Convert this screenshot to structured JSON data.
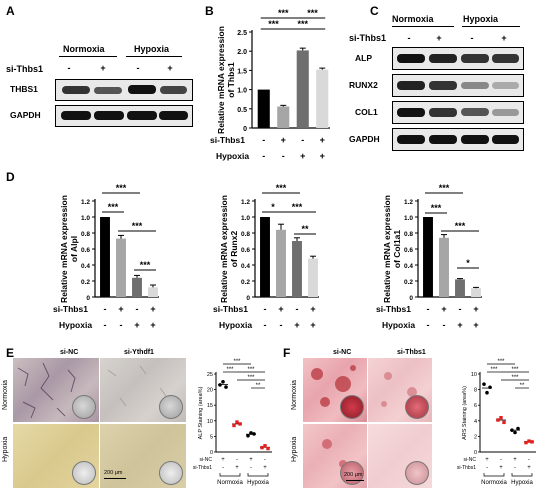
{
  "panels": [
    "A",
    "B",
    "C",
    "D",
    "E",
    "F"
  ],
  "panelA": {
    "headers": [
      "Normoxia",
      "Hypoxia"
    ],
    "row_label": "si-Thbs1",
    "signs": [
      "-",
      "+",
      "-",
      "+"
    ],
    "bands": [
      "THBS1",
      "GAPDH"
    ]
  },
  "panelB": {
    "chart_data": {
      "type": "bar",
      "ylabel": "Relative mRNA expression of Thbs1",
      "ylim": [
        0,
        2.5
      ],
      "yticks": [
        "0",
        "0.5",
        "1.0",
        "1.5",
        "2.0",
        "2.5"
      ],
      "values": [
        1.0,
        0.56,
        2.02,
        1.52
      ],
      "errors": [
        0.0,
        0.03,
        0.06,
        0.04
      ],
      "colors": [
        "#000000",
        "#a6a6a6",
        "#6f6f6f",
        "#d9d9d9"
      ],
      "sig": [
        "***",
        "***",
        "***",
        "***"
      ],
      "row1_label": "si-Thbs1",
      "row1": [
        "-",
        "+",
        "-",
        "+"
      ],
      "row2_label": "Hypoxia",
      "row2": [
        "-",
        "-",
        "+",
        "+"
      ]
    }
  },
  "panelC": {
    "headers": [
      "Normoxia",
      "Hypoxia"
    ],
    "row_label": "si-Thbs1",
    "signs": [
      "-",
      "+",
      "-",
      "+"
    ],
    "bands": [
      "ALP",
      "RUNX2",
      "COL1",
      "GAPDH"
    ]
  },
  "panelD": {
    "chart_data": [
      {
        "type": "bar",
        "ylabel": "Relative mRNA expression of Alpl",
        "ylim": [
          0,
          1.2
        ],
        "values": [
          1.0,
          0.73,
          0.24,
          0.12
        ],
        "errors": [
          0,
          0.04,
          0.03,
          0.03
        ],
        "sig": [
          "***",
          "***",
          "***",
          "***"
        ]
      },
      {
        "type": "bar",
        "ylabel": "Relative mRNA expression of Runx2",
        "ylim": [
          0,
          1.2
        ],
        "values": [
          1.0,
          0.84,
          0.7,
          0.48
        ],
        "errors": [
          0,
          0.07,
          0.04,
          0.03
        ],
        "sig": [
          "***",
          "*",
          "***",
          "**"
        ]
      },
      {
        "type": "bar",
        "ylabel": "Relative mRNA expression of Col1a1",
        "ylim": [
          0,
          1.2
        ],
        "values": [
          1.0,
          0.74,
          0.22,
          0.11
        ],
        "errors": [
          0,
          0.04,
          0.01,
          0.01
        ],
        "sig": [
          "***",
          "***",
          "***",
          "*"
        ]
      }
    ],
    "yticks": [
      "0",
      "0.2",
      "0.4",
      "0.6",
      "0.8",
      "1.0",
      "1.2"
    ],
    "colors": [
      "#000000",
      "#a6a6a6",
      "#6f6f6f",
      "#d9d9d9"
    ],
    "row1_label": "si-Thbs1",
    "row1": [
      "-",
      "+",
      "-",
      "+"
    ],
    "row2_label": "Hypoxia",
    "row2": [
      "-",
      "-",
      "+",
      "+"
    ]
  },
  "panelE": {
    "col_headers": [
      "si-NC",
      "si-Ythdf1"
    ],
    "row_headers": [
      "Normoxia",
      "Hypoxia"
    ],
    "scale": "200 μm",
    "chart_data": {
      "type": "scatter",
      "ylabel": "ALP Staining (area%)",
      "ylim": [
        0,
        25
      ],
      "yticks": [
        "0",
        "5",
        "10",
        "15",
        "20",
        "25"
      ],
      "groups": [
        [
          21.5,
          22.5,
          20.8
        ],
        [
          8.5,
          9.6,
          9.0
        ],
        [
          5.2,
          6.1,
          5.8
        ],
        [
          1.4,
          2.0,
          1.1
        ]
      ],
      "means": [
        21.6,
        9.0,
        5.7,
        1.5
      ],
      "colors": [
        "#000000",
        "#e32020",
        "#000000",
        "#e32020"
      ],
      "sig": [
        "***",
        "***",
        "***",
        "***",
        "**"
      ],
      "row1_label": "si-NC",
      "row1": [
        "+",
        "-",
        "+",
        "-"
      ],
      "row2_label": "si-Thbs1",
      "row2": [
        "-",
        "+",
        "-",
        "+"
      ],
      "groups_label": [
        "Normoxia",
        "Hypoxia"
      ]
    }
  },
  "panelF": {
    "col_headers": [
      "si-NC",
      "si-Thbs1"
    ],
    "row_headers": [
      "Normoxia",
      "Hypoxia"
    ],
    "scale": "200 μm",
    "chart_data": {
      "type": "scatter",
      "ylabel": "ARS Staining (area%)",
      "ylim": [
        0,
        10
      ],
      "yticks": [
        "0",
        "2",
        "4",
        "6",
        "8",
        "10"
      ],
      "groups": [
        [
          8.7,
          7.6,
          8.3
        ],
        [
          4.1,
          4.4,
          3.8
        ],
        [
          2.8,
          2.5,
          3.0
        ],
        [
          1.2,
          1.4,
          1.3
        ]
      ],
      "means": [
        8.2,
        4.1,
        2.8,
        1.3
      ],
      "colors": [
        "#000000",
        "#e32020",
        "#000000",
        "#e32020"
      ],
      "sig": [
        "***",
        "***",
        "***",
        "***",
        "**"
      ],
      "row1_label": "si-NC",
      "row1": [
        "+",
        "-",
        "+",
        "-"
      ],
      "row2_label": "si-Thbs1",
      "row2": [
        "-",
        "+",
        "-",
        "+"
      ],
      "groups_label": [
        "Normoxia",
        "Hypoxia"
      ]
    }
  }
}
